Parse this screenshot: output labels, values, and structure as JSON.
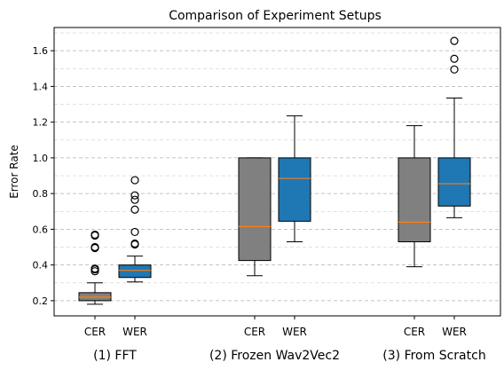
{
  "chart_data": {
    "type": "box",
    "title": "Comparison of Experiment Setups",
    "ylabel": "Error Rate",
    "xlabel": "",
    "ylim": [
      0.115,
      1.73
    ],
    "yticks": [
      "0.2",
      "0.4",
      "0.6",
      "0.8",
      "1.0",
      "1.2",
      "1.4",
      "1.6"
    ],
    "grid": "y-dashed",
    "colors": {
      "CER": "#808080",
      "WER": "#1f77b4",
      "median": "#ff7f0e"
    },
    "groups": [
      {
        "label": "(1) FFT",
        "boxes": [
          {
            "label": "CER",
            "whisker_low": 0.18,
            "q1": 0.2,
            "median": 0.22,
            "q3": 0.245,
            "whisker_high": 0.3,
            "outliers": [
              0.365,
              0.375,
              0.38,
              0.495,
              0.5,
              0.565,
              0.57
            ]
          },
          {
            "label": "WER",
            "whisker_low": 0.305,
            "q1": 0.33,
            "median": 0.37,
            "q3": 0.4,
            "whisker_high": 0.45,
            "outliers": [
              0.515,
              0.52,
              0.585,
              0.71,
              0.765,
              0.79,
              0.875
            ]
          }
        ]
      },
      {
        "label": "(2) Frozen Wav2Vec2",
        "boxes": [
          {
            "label": "CER",
            "whisker_low": 0.34,
            "q1": 0.425,
            "median": 0.615,
            "q3": 1.0,
            "whisker_high": 1.0,
            "outliers": []
          },
          {
            "label": "WER",
            "whisker_low": 0.53,
            "q1": 0.645,
            "median": 0.885,
            "q3": 1.0,
            "whisker_high": 1.235,
            "outliers": []
          }
        ]
      },
      {
        "label": "(3) From Scratch",
        "boxes": [
          {
            "label": "CER",
            "whisker_low": 0.39,
            "q1": 0.53,
            "median": 0.64,
            "q3": 1.0,
            "whisker_high": 1.18,
            "outliers": []
          },
          {
            "label": "WER",
            "whisker_low": 0.665,
            "q1": 0.73,
            "median": 0.855,
            "q3": 1.0,
            "whisker_high": 1.335,
            "outliers": [
              1.495,
              1.555,
              1.655
            ]
          }
        ]
      }
    ]
  }
}
